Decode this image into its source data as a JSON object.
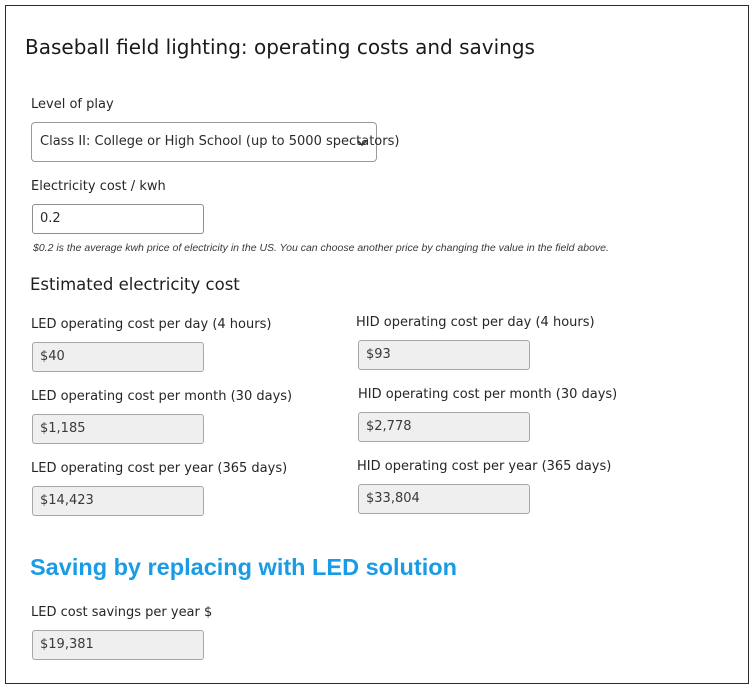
{
  "page": {
    "title": "Baseball field lighting: operating costs and savings"
  },
  "level_of_play": {
    "label": "Level of play",
    "selected": "Class II: College or High School (up to 5000 spectators)"
  },
  "electricity": {
    "label": "Electricity cost / kwh",
    "value": "0.2",
    "note": "$0.2  is the average kwh price of electricity in the US. You can choose another price by changing the value in the field above."
  },
  "estimated": {
    "title": "Estimated electricity cost",
    "led_day_label": "LED operating cost per day (4 hours)",
    "led_day_value": "$40",
    "hid_day_label": "HID  operating cost per day (4 hours)",
    "hid_day_value": "$93",
    "led_month_label": "LED operating cost per month (30 days)",
    "led_month_value": "$1,185",
    "hid_month_label": "HID operating cost per month (30 days)",
    "hid_month_value": "$2,778",
    "led_year_label": "LED operating cost per year (365 days)",
    "led_year_value": "$14,423",
    "hid_year_label": "HID operating cost per year (365 days)",
    "hid_year_value": "$33,804"
  },
  "savings": {
    "title": "Saving by replacing with LED solution",
    "label": "LED cost savings per year $",
    "value": "$19,381"
  },
  "colors": {
    "accent": "#1a9be6",
    "readonly_bg": "#efefef",
    "border": "#2b2b2b"
  },
  "icons": {
    "select_arrow": "chevron-down-icon"
  }
}
